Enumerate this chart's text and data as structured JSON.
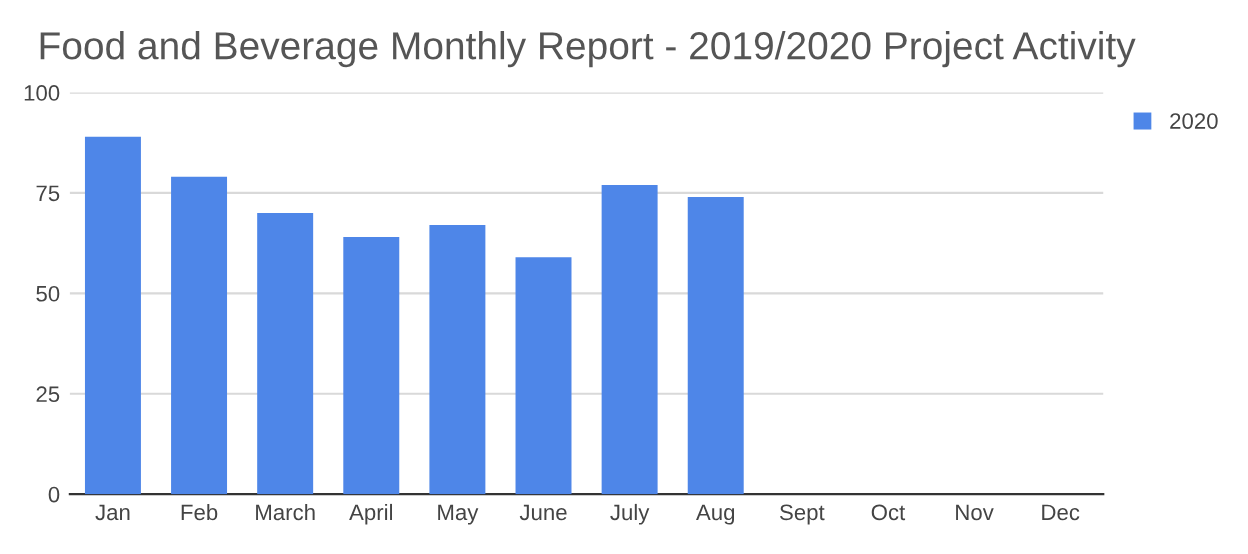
{
  "chart_data": {
    "type": "bar",
    "title": "Food and Beverage Monthly Report - 2019/2020 Project Activity",
    "categories": [
      "Jan",
      "Feb",
      "March",
      "April",
      "May",
      "June",
      "July",
      "Aug",
      "Sept",
      "Oct",
      "Nov",
      "Dec"
    ],
    "series": [
      {
        "name": "2020",
        "color": "#4e86e8",
        "values": [
          89,
          79,
          70,
          64,
          67,
          59,
          77,
          74,
          null,
          null,
          null,
          null
        ]
      }
    ],
    "ylim": [
      0,
      100
    ],
    "yticks": [
      0,
      25,
      50,
      75,
      100
    ],
    "grid": "y",
    "legend": "top right"
  }
}
